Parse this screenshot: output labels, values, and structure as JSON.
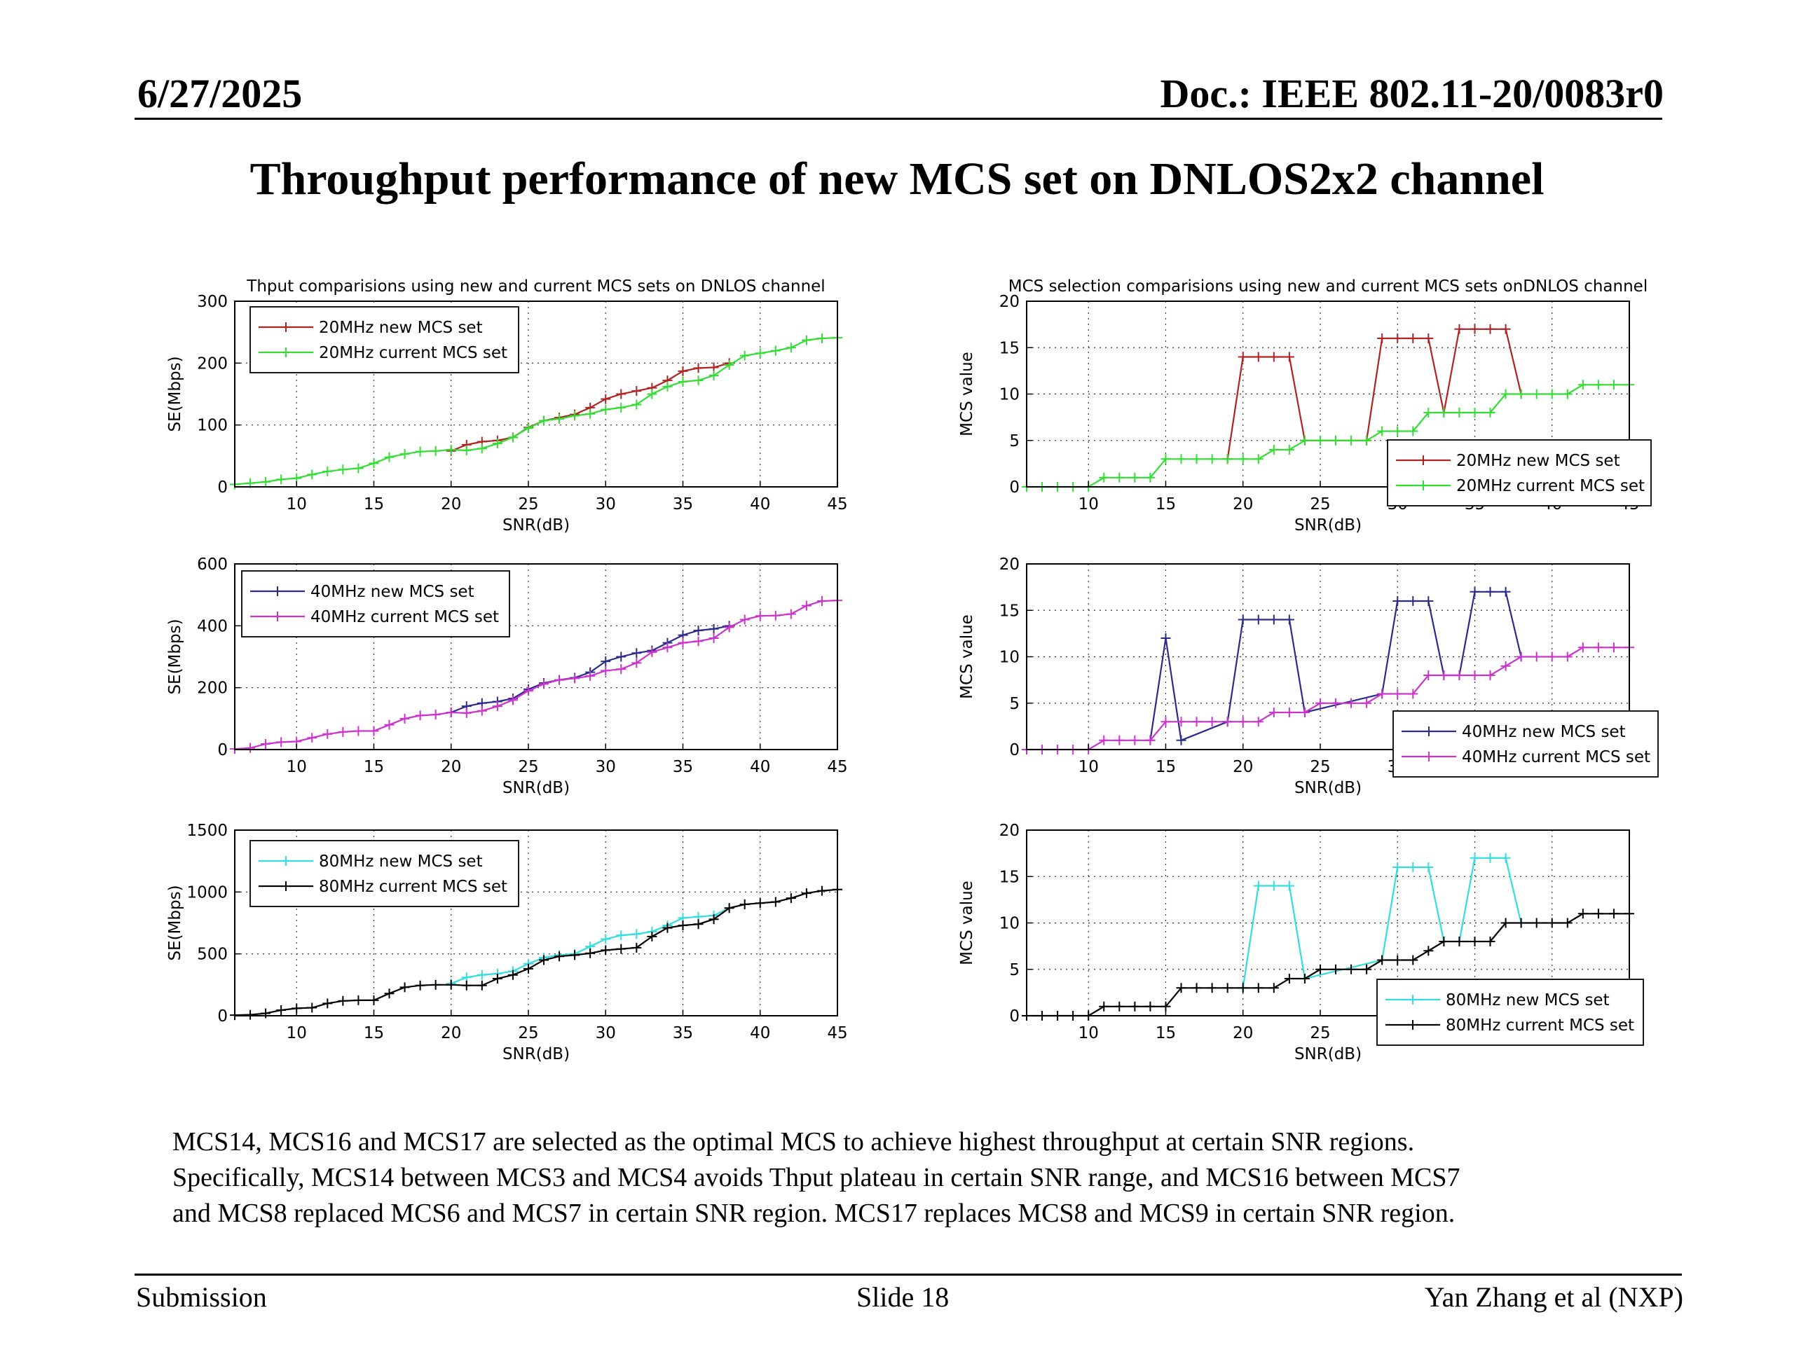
{
  "header": {
    "date": "6/27/2025",
    "doc": "Doc.: IEEE 802.11-20/0083r0"
  },
  "title": "Throughput performance of new MCS set on DNLOS2x2 channel",
  "body_text": [
    "MCS14, MCS16 and MCS17 are selected as the optimal MCS to achieve highest throughput at certain SNR regions.",
    "Specifically, MCS14 between MCS3 and MCS4 avoids Thput plateau in certain SNR range, and MCS16 between MCS7",
    "and MCS8 replaced MCS6 and MCS7 in certain SNR region. MCS17 replaces MCS8 and MCS9 in certain SNR region."
  ],
  "footer": {
    "left": "Submission",
    "center": "Slide 18",
    "right": "Yan Zhang et al (NXP)"
  },
  "colors": {
    "red": "#b22222",
    "green": "#33dd33",
    "navy": "#2b2b8c",
    "magenta": "#cc33cc",
    "cyan": "#33dddd",
    "black": "#000000"
  },
  "chart_data": [
    {
      "id": "thput-20",
      "type": "line",
      "title": "Thput comparisions using new and current MCS sets on DNLOS channel",
      "xlabel": "SNR(dB)",
      "ylabel": "SE(Mbps)",
      "xlim": [
        6,
        45
      ],
      "ylim": [
        0,
        300
      ],
      "xticks": [
        10,
        15,
        20,
        25,
        30,
        35,
        40,
        45
      ],
      "yticks": [
        0,
        100,
        200,
        300
      ],
      "grid": true,
      "legend_position": "top-left",
      "series": [
        {
          "name": "20MHz new MCS set",
          "color": "#b22222",
          "x": [
            20,
            21,
            22,
            23,
            24,
            25,
            26,
            27,
            28,
            29,
            30,
            31,
            32,
            33,
            34,
            35,
            36,
            37,
            38
          ],
          "y": [
            58,
            68,
            73,
            75,
            80,
            96,
            107,
            112,
            117,
            128,
            142,
            150,
            155,
            160,
            172,
            187,
            192,
            193,
            200
          ]
        },
        {
          "name": "20MHz current MCS set",
          "color": "#33dd33",
          "x": [
            6,
            7,
            8,
            9,
            10,
            11,
            12,
            13,
            14,
            15,
            16,
            17,
            18,
            19,
            20,
            21,
            22,
            23,
            24,
            25,
            26,
            27,
            28,
            29,
            30,
            31,
            32,
            33,
            34,
            35,
            36,
            37,
            38,
            39,
            40,
            41,
            42,
            43,
            44,
            45
          ],
          "y": [
            4,
            6,
            8,
            12,
            14,
            20,
            25,
            28,
            30,
            38,
            48,
            53,
            57,
            58,
            60,
            59,
            62,
            70,
            80,
            95,
            107,
            110,
            115,
            118,
            125,
            128,
            133,
            150,
            162,
            170,
            172,
            180,
            197,
            212,
            216,
            220,
            225,
            237,
            240,
            241
          ]
        }
      ]
    },
    {
      "id": "mcs-20",
      "type": "line",
      "title": "MCS selection comparisions using new and current MCS sets onDNLOS channel",
      "xlabel": "SNR(dB)",
      "ylabel": "MCS value",
      "xlim": [
        6,
        45
      ],
      "ylim": [
        0,
        20
      ],
      "xticks": [
        10,
        15,
        20,
        25,
        30,
        35,
        40,
        45
      ],
      "yticks": [
        0,
        5,
        10,
        15,
        20
      ],
      "grid": true,
      "legend_position": "bottom-right",
      "series": [
        {
          "name": "20MHz new MCS set",
          "color": "#b22222",
          "x": [
            19,
            20,
            21,
            22,
            23,
            24,
            28,
            29,
            30,
            31,
            32,
            33,
            34,
            35,
            36,
            37,
            38
          ],
          "y": [
            3,
            14,
            14,
            14,
            14,
            5,
            5,
            16,
            16,
            16,
            16,
            8,
            17,
            17,
            17,
            17,
            10
          ]
        },
        {
          "name": "20MHz current MCS set",
          "color": "#33dd33",
          "x": [
            6,
            7,
            8,
            9,
            10,
            11,
            12,
            13,
            14,
            15,
            16,
            17,
            18,
            19,
            20,
            21,
            22,
            23,
            24,
            25,
            26,
            27,
            28,
            29,
            30,
            31,
            32,
            33,
            34,
            35,
            36,
            37,
            38,
            39,
            40,
            41,
            42,
            43,
            44,
            45
          ],
          "y": [
            0,
            0,
            0,
            0,
            0,
            1,
            1,
            1,
            1,
            3,
            3,
            3,
            3,
            3,
            3,
            3,
            4,
            4,
            5,
            5,
            5,
            5,
            5,
            6,
            6,
            6,
            8,
            8,
            8,
            8,
            8,
            10,
            10,
            10,
            10,
            10,
            11,
            11,
            11,
            11
          ]
        }
      ]
    },
    {
      "id": "thput-40",
      "type": "line",
      "title": "",
      "xlabel": "SNR(dB)",
      "ylabel": "SE(Mbps)",
      "xlim": [
        6,
        45
      ],
      "ylim": [
        0,
        600
      ],
      "xticks": [
        10,
        15,
        20,
        25,
        30,
        35,
        40,
        45
      ],
      "yticks": [
        0,
        200,
        400,
        600
      ],
      "grid": true,
      "legend_position": "top-left",
      "series": [
        {
          "name": "40MHz new MCS set",
          "color": "#2b2b8c",
          "x": [
            20,
            21,
            22,
            23,
            24,
            25,
            26,
            27,
            28,
            29,
            30,
            31,
            32,
            33,
            34,
            35,
            36,
            37,
            38
          ],
          "y": [
            120,
            140,
            150,
            155,
            165,
            195,
            215,
            225,
            232,
            250,
            285,
            300,
            312,
            320,
            345,
            370,
            385,
            390,
            400
          ]
        },
        {
          "name": "40MHz current MCS set",
          "color": "#cc33cc",
          "x": [
            6,
            7,
            8,
            9,
            10,
            11,
            12,
            13,
            14,
            15,
            16,
            17,
            18,
            19,
            20,
            21,
            22,
            23,
            24,
            25,
            26,
            27,
            28,
            29,
            30,
            31,
            32,
            33,
            34,
            35,
            36,
            37,
            38,
            39,
            40,
            41,
            42,
            43,
            44,
            45
          ],
          "y": [
            2,
            5,
            18,
            24,
            26,
            38,
            50,
            57,
            60,
            60,
            80,
            100,
            110,
            113,
            120,
            118,
            125,
            140,
            160,
            190,
            212,
            225,
            230,
            238,
            255,
            260,
            280,
            315,
            330,
            345,
            350,
            360,
            395,
            420,
            432,
            433,
            438,
            465,
            480,
            482
          ]
        }
      ]
    },
    {
      "id": "mcs-40",
      "type": "line",
      "title": "",
      "xlabel": "SNR(dB)",
      "ylabel": "MCS value",
      "xlim": [
        6,
        45
      ],
      "ylim": [
        0,
        20
      ],
      "xticks": [
        10,
        15,
        20,
        25,
        30,
        35,
        40,
        45
      ],
      "yticks": [
        0,
        5,
        10,
        15,
        20
      ],
      "grid": true,
      "legend_position": "bottom-right",
      "series": [
        {
          "name": "40MHz new MCS set",
          "color": "#2b2b8c",
          "x": [
            14,
            15,
            16,
            19,
            20,
            21,
            22,
            23,
            24,
            29,
            30,
            31,
            32,
            33,
            34,
            35,
            36,
            37,
            38
          ],
          "y": [
            1,
            12,
            1,
            3,
            14,
            14,
            14,
            14,
            4,
            6,
            16,
            16,
            16,
            8,
            8,
            17,
            17,
            17,
            10
          ]
        },
        {
          "name": "40MHz current MCS set",
          "color": "#cc33cc",
          "x": [
            6,
            7,
            8,
            9,
            10,
            11,
            12,
            13,
            14,
            15,
            16,
            17,
            18,
            19,
            20,
            21,
            22,
            23,
            24,
            25,
            26,
            27,
            28,
            29,
            30,
            31,
            32,
            33,
            34,
            35,
            36,
            37,
            38,
            39,
            40,
            41,
            42,
            43,
            44,
            45
          ],
          "y": [
            0,
            0,
            0,
            0,
            0,
            1,
            1,
            1,
            1,
            3,
            3,
            3,
            3,
            3,
            3,
            3,
            4,
            4,
            4,
            5,
            5,
            5,
            5,
            6,
            6,
            6,
            8,
            8,
            8,
            8,
            8,
            9,
            10,
            10,
            10,
            10,
            11,
            11,
            11,
            11
          ]
        }
      ]
    },
    {
      "id": "thput-80",
      "type": "line",
      "title": "",
      "xlabel": "SNR(dB)",
      "ylabel": "SE(Mbps)",
      "xlim": [
        6,
        45
      ],
      "ylim": [
        0,
        1500
      ],
      "xticks": [
        10,
        15,
        20,
        25,
        30,
        35,
        40,
        45
      ],
      "yticks": [
        0,
        500,
        1000,
        1500
      ],
      "grid": true,
      "legend_position": "top-left",
      "series": [
        {
          "name": "80MHz new MCS set",
          "color": "#33dddd",
          "x": [
            20,
            21,
            22,
            23,
            24,
            25,
            26,
            27,
            28,
            29,
            30,
            31,
            32,
            33,
            34,
            35,
            36,
            37,
            38
          ],
          "y": [
            260,
            310,
            330,
            340,
            360,
            420,
            470,
            490,
            500,
            560,
            620,
            650,
            660,
            680,
            730,
            790,
            800,
            810,
            870
          ]
        },
        {
          "name": "80MHz current MCS set",
          "color": "#000000",
          "x": [
            6,
            7,
            8,
            9,
            10,
            11,
            12,
            13,
            14,
            15,
            16,
            17,
            18,
            19,
            20,
            21,
            22,
            23,
            24,
            25,
            26,
            27,
            28,
            29,
            30,
            31,
            32,
            33,
            34,
            35,
            36,
            37,
            38,
            39,
            40,
            41,
            42,
            43,
            44,
            45
          ],
          "y": [
            5,
            8,
            20,
            45,
            60,
            65,
            100,
            120,
            125,
            125,
            180,
            230,
            245,
            250,
            250,
            245,
            245,
            300,
            330,
            380,
            450,
            480,
            490,
            505,
            530,
            540,
            550,
            640,
            710,
            730,
            740,
            780,
            870,
            900,
            910,
            920,
            950,
            990,
            1010,
            1020
          ]
        }
      ]
    },
    {
      "id": "mcs-80",
      "type": "line",
      "title": "",
      "xlabel": "SNR(dB)",
      "ylabel": "MCS value",
      "xlim": [
        6,
        45
      ],
      "ylim": [
        0,
        20
      ],
      "xticks": [
        10,
        15,
        20,
        25,
        30,
        35,
        40,
        45
      ],
      "yticks": [
        0,
        5,
        10,
        15,
        20
      ],
      "grid": true,
      "legend_position": "bottom-right",
      "series": [
        {
          "name": "80MHz new MCS set",
          "color": "#33dddd",
          "x": [
            20,
            21,
            22,
            23,
            24,
            29,
            30,
            31,
            32,
            33,
            34,
            35,
            36,
            37,
            38
          ],
          "y": [
            3,
            14,
            14,
            14,
            4,
            6,
            16,
            16,
            16,
            8,
            8,
            17,
            17,
            17,
            10
          ]
        },
        {
          "name": "80MHz current MCS set",
          "color": "#000000",
          "x": [
            6,
            7,
            8,
            9,
            10,
            11,
            12,
            13,
            14,
            15,
            16,
            17,
            18,
            19,
            20,
            21,
            22,
            23,
            24,
            25,
            26,
            27,
            28,
            29,
            30,
            31,
            32,
            33,
            34,
            35,
            36,
            37,
            38,
            39,
            40,
            41,
            42,
            43,
            44,
            45
          ],
          "y": [
            0,
            0,
            0,
            0,
            0,
            1,
            1,
            1,
            1,
            1,
            3,
            3,
            3,
            3,
            3,
            3,
            3,
            4,
            4,
            5,
            5,
            5,
            5,
            6,
            6,
            6,
            7,
            8,
            8,
            8,
            8,
            10,
            10,
            10,
            10,
            10,
            11,
            11,
            11,
            11
          ]
        }
      ]
    }
  ]
}
